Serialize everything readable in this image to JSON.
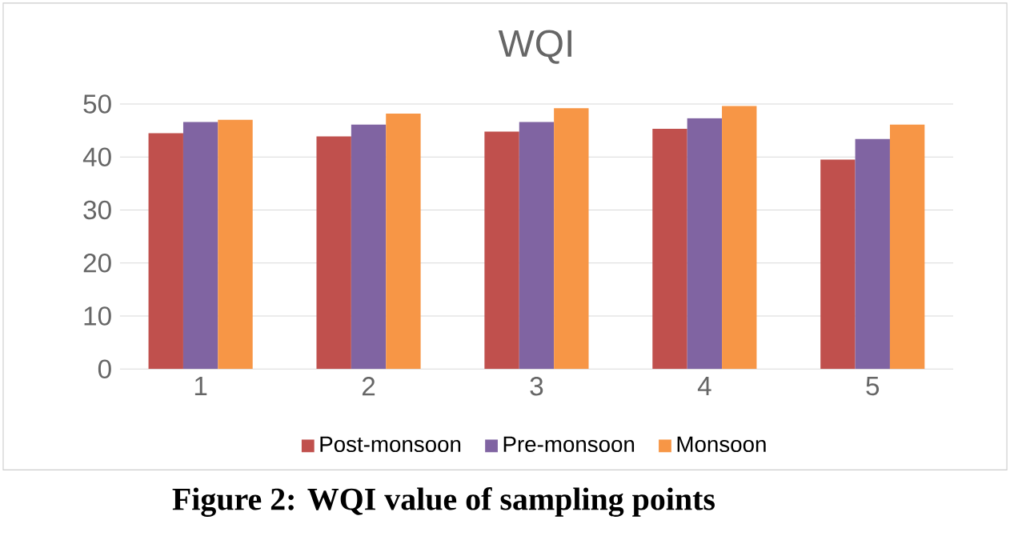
{
  "chart_data": {
    "type": "bar",
    "title": "WQI",
    "categories": [
      "1",
      "2",
      "3",
      "4",
      "5"
    ],
    "series": [
      {
        "name": "Post-monsoon",
        "color": "#c0504d",
        "values": [
          44.5,
          43.9,
          44.8,
          45.3,
          39.5
        ]
      },
      {
        "name": "Pre-monsoon",
        "color": "#8064a2",
        "values": [
          46.6,
          46.1,
          46.6,
          47.3,
          43.4
        ]
      },
      {
        "name": "Monsoon",
        "color": "#f79646",
        "values": [
          47,
          48.2,
          49.2,
          49.6,
          46.1
        ]
      }
    ],
    "ylim": [
      0,
      50
    ],
    "yticks": [
      0,
      10,
      20,
      30,
      40,
      50
    ],
    "grid": "y",
    "legend": "bottom",
    "annotations": [
      "Figure 2: WQI value of sampling points"
    ]
  }
}
